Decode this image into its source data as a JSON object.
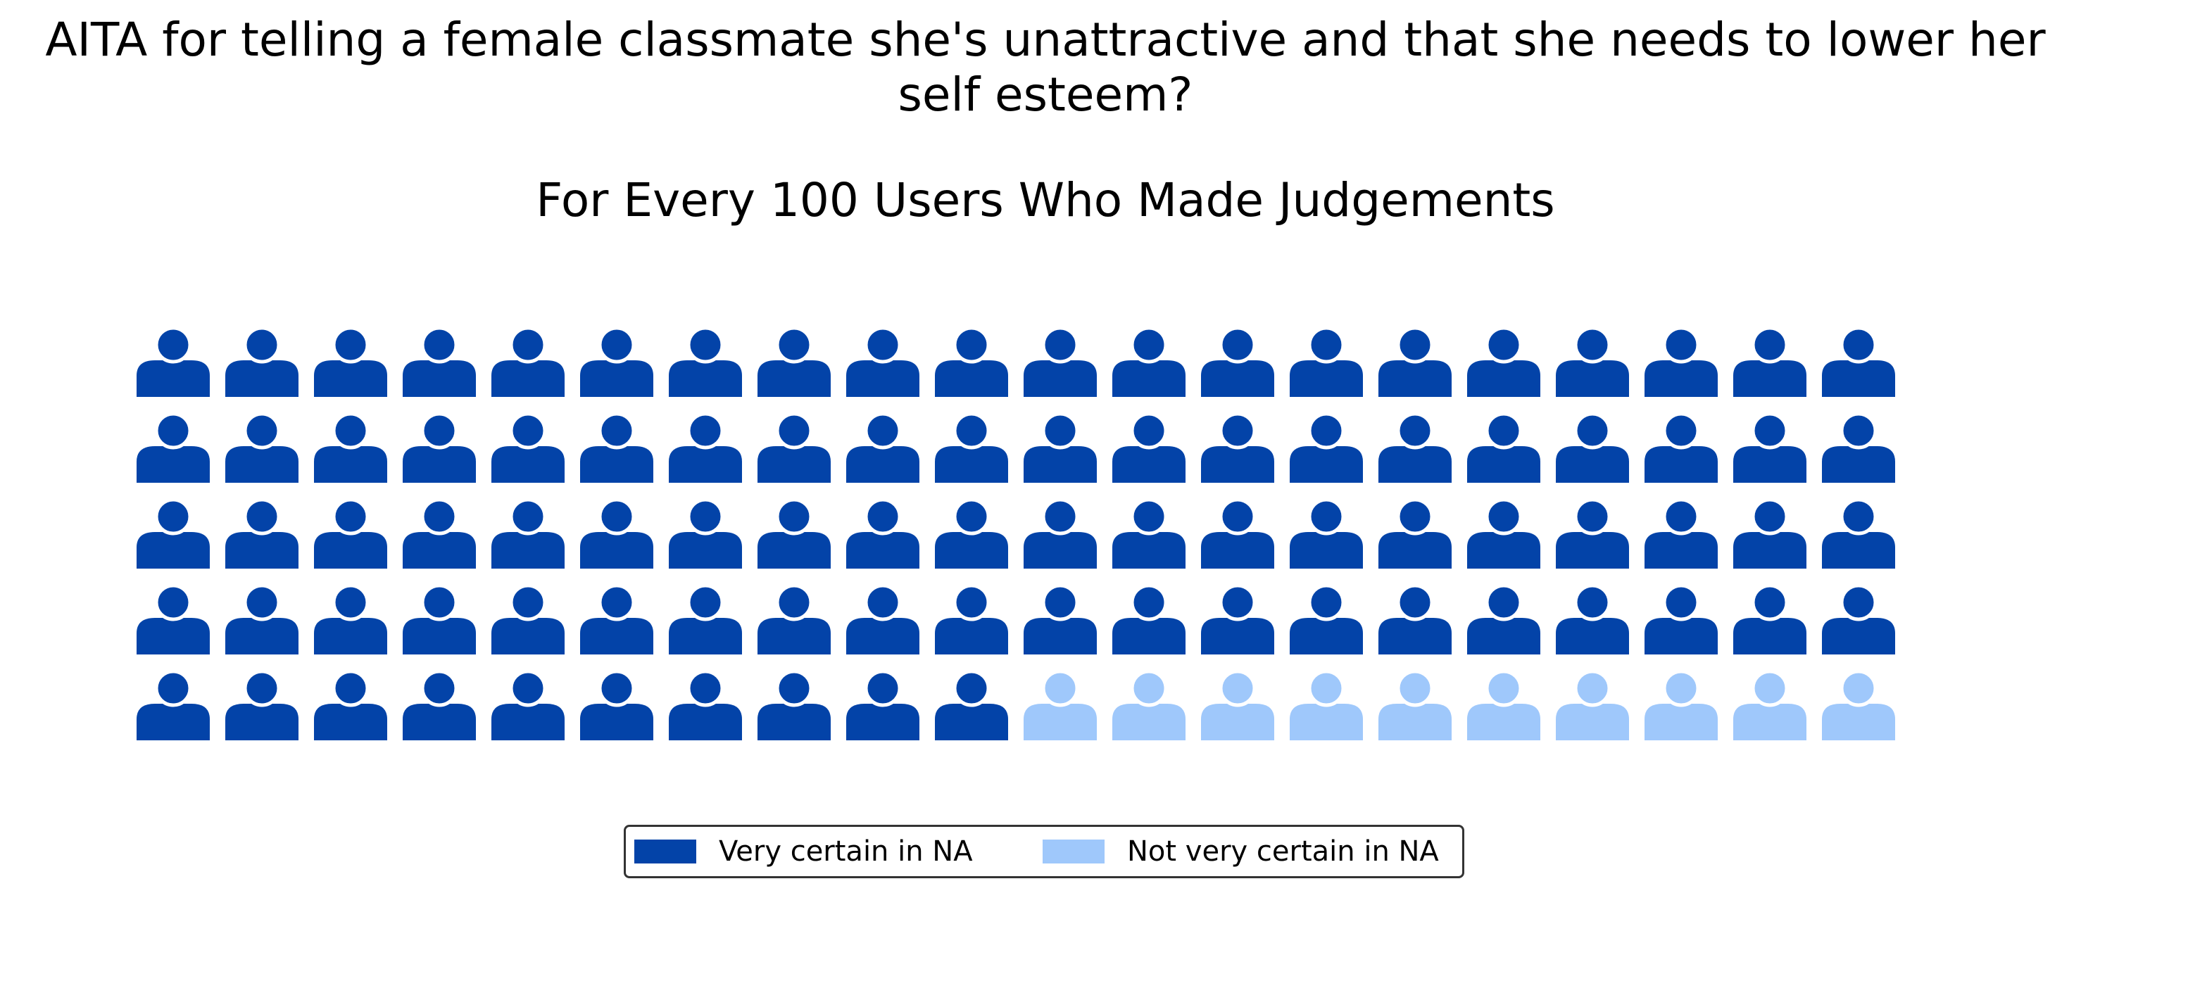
{
  "title": "AITA for telling a female classmate she's unattractive and that she needs to lower her self esteem?",
  "subtitle": "For Every 100 Users Who Made Judgements",
  "chart_data": {
    "type": "waffle",
    "title": "AITA for telling a female classmate she's unattractive and that she needs to lower her self esteem?",
    "subtitle": "For Every 100 Users Who Made Judgements",
    "total": 100,
    "rows": 5,
    "columns": 20,
    "icon": "person-icon",
    "series": [
      {
        "name": "Very certain in NA",
        "value": 90,
        "color": "#0343A8"
      },
      {
        "name": "Not very certain in NA",
        "value": 10,
        "color": "#9FC8FB"
      }
    ],
    "legend_position": "bottom-center"
  }
}
